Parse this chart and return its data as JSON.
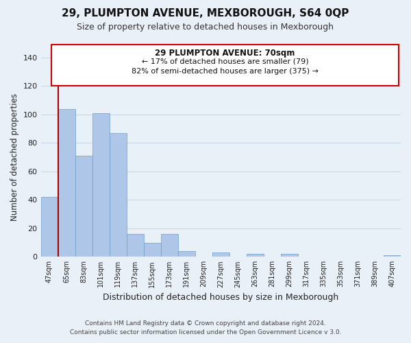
{
  "title": "29, PLUMPTON AVENUE, MEXBOROUGH, S64 0QP",
  "subtitle": "Size of property relative to detached houses in Mexborough",
  "xlabel": "Distribution of detached houses by size in Mexborough",
  "ylabel": "Number of detached properties",
  "bar_labels": [
    "47sqm",
    "65sqm",
    "83sqm",
    "101sqm",
    "119sqm",
    "137sqm",
    "155sqm",
    "173sqm",
    "191sqm",
    "209sqm",
    "227sqm",
    "245sqm",
    "263sqm",
    "281sqm",
    "299sqm",
    "317sqm",
    "335sqm",
    "353sqm",
    "371sqm",
    "389sqm",
    "407sqm"
  ],
  "bar_values": [
    42,
    104,
    71,
    101,
    87,
    16,
    10,
    16,
    4,
    0,
    3,
    0,
    2,
    0,
    2,
    0,
    0,
    0,
    0,
    0,
    1
  ],
  "bar_color": "#aec6e8",
  "bar_edge_color": "#6ea0cc",
  "marker_color": "#aa0000",
  "ylim": [
    0,
    140
  ],
  "yticks": [
    0,
    20,
    40,
    60,
    80,
    100,
    120,
    140
  ],
  "annotation_title": "29 PLUMPTON AVENUE: 70sqm",
  "annotation_line1": "← 17% of detached houses are smaller (79)",
  "annotation_line2": "82% of semi-detached houses are larger (375) →",
  "footer_line1": "Contains HM Land Registry data © Crown copyright and database right 2024.",
  "footer_line2": "Contains public sector information licensed under the Open Government Licence v 3.0.",
  "background_color": "#eaf0f8",
  "plot_bg_color": "#e8f0f8",
  "grid_color": "#c5d5e8"
}
